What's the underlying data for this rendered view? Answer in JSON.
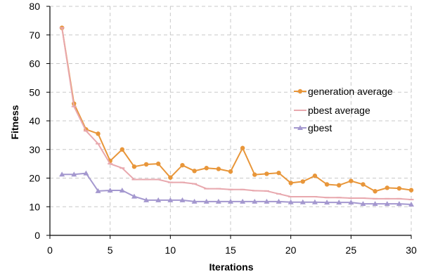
{
  "chart_data": {
    "type": "line",
    "title": "",
    "xlabel": "Iterations",
    "ylabel": "Fitness",
    "xlim": [
      0,
      30
    ],
    "ylim": [
      0,
      80
    ],
    "x_ticks": [
      0,
      5,
      10,
      15,
      20,
      25,
      30
    ],
    "y_ticks": [
      0,
      10,
      20,
      30,
      40,
      50,
      60,
      70,
      80
    ],
    "grid": true,
    "legend_position": "right",
    "x": [
      1,
      2,
      3,
      4,
      5,
      6,
      7,
      8,
      9,
      10,
      11,
      12,
      13,
      14,
      15,
      16,
      17,
      18,
      19,
      20,
      21,
      22,
      23,
      24,
      25,
      26,
      27,
      28,
      29,
      30
    ],
    "series": [
      {
        "name": "generation average",
        "color": "#e8963a",
        "marker": "circle",
        "values": [
          72.5,
          46,
          37,
          35.5,
          26,
          30,
          24,
          24.8,
          25,
          20.2,
          24.5,
          22.5,
          23.5,
          23.2,
          22.3,
          30.5,
          21.2,
          21.5,
          21.8,
          18.3,
          18.8,
          20.8,
          17.8,
          17.5,
          19,
          17.8,
          15.4,
          16.6,
          16.4,
          15.8
        ]
      },
      {
        "name": "pbest average",
        "color": "#e8a8ae",
        "marker": "dash",
        "values": [
          72.5,
          45,
          36.5,
          32,
          25,
          23.5,
          19.5,
          19.5,
          19.5,
          18.5,
          18.5,
          18,
          16.3,
          16.3,
          16,
          16,
          15.6,
          15.5,
          14.5,
          13.5,
          13.5,
          13.5,
          13.2,
          13.2,
          13,
          13,
          12.8,
          12.8,
          12.8,
          12.5
        ]
      },
      {
        "name": "gbest",
        "color": "#a498cf",
        "marker": "triangle",
        "values": [
          21.3,
          21.3,
          21.7,
          15.5,
          15.7,
          15.7,
          13.6,
          12.3,
          12.3,
          12.3,
          12.3,
          11.8,
          11.8,
          11.8,
          11.8,
          11.8,
          11.8,
          11.8,
          11.8,
          11.6,
          11.6,
          11.6,
          11.5,
          11.5,
          11.5,
          11,
          11,
          11,
          11,
          10.8
        ]
      }
    ]
  }
}
